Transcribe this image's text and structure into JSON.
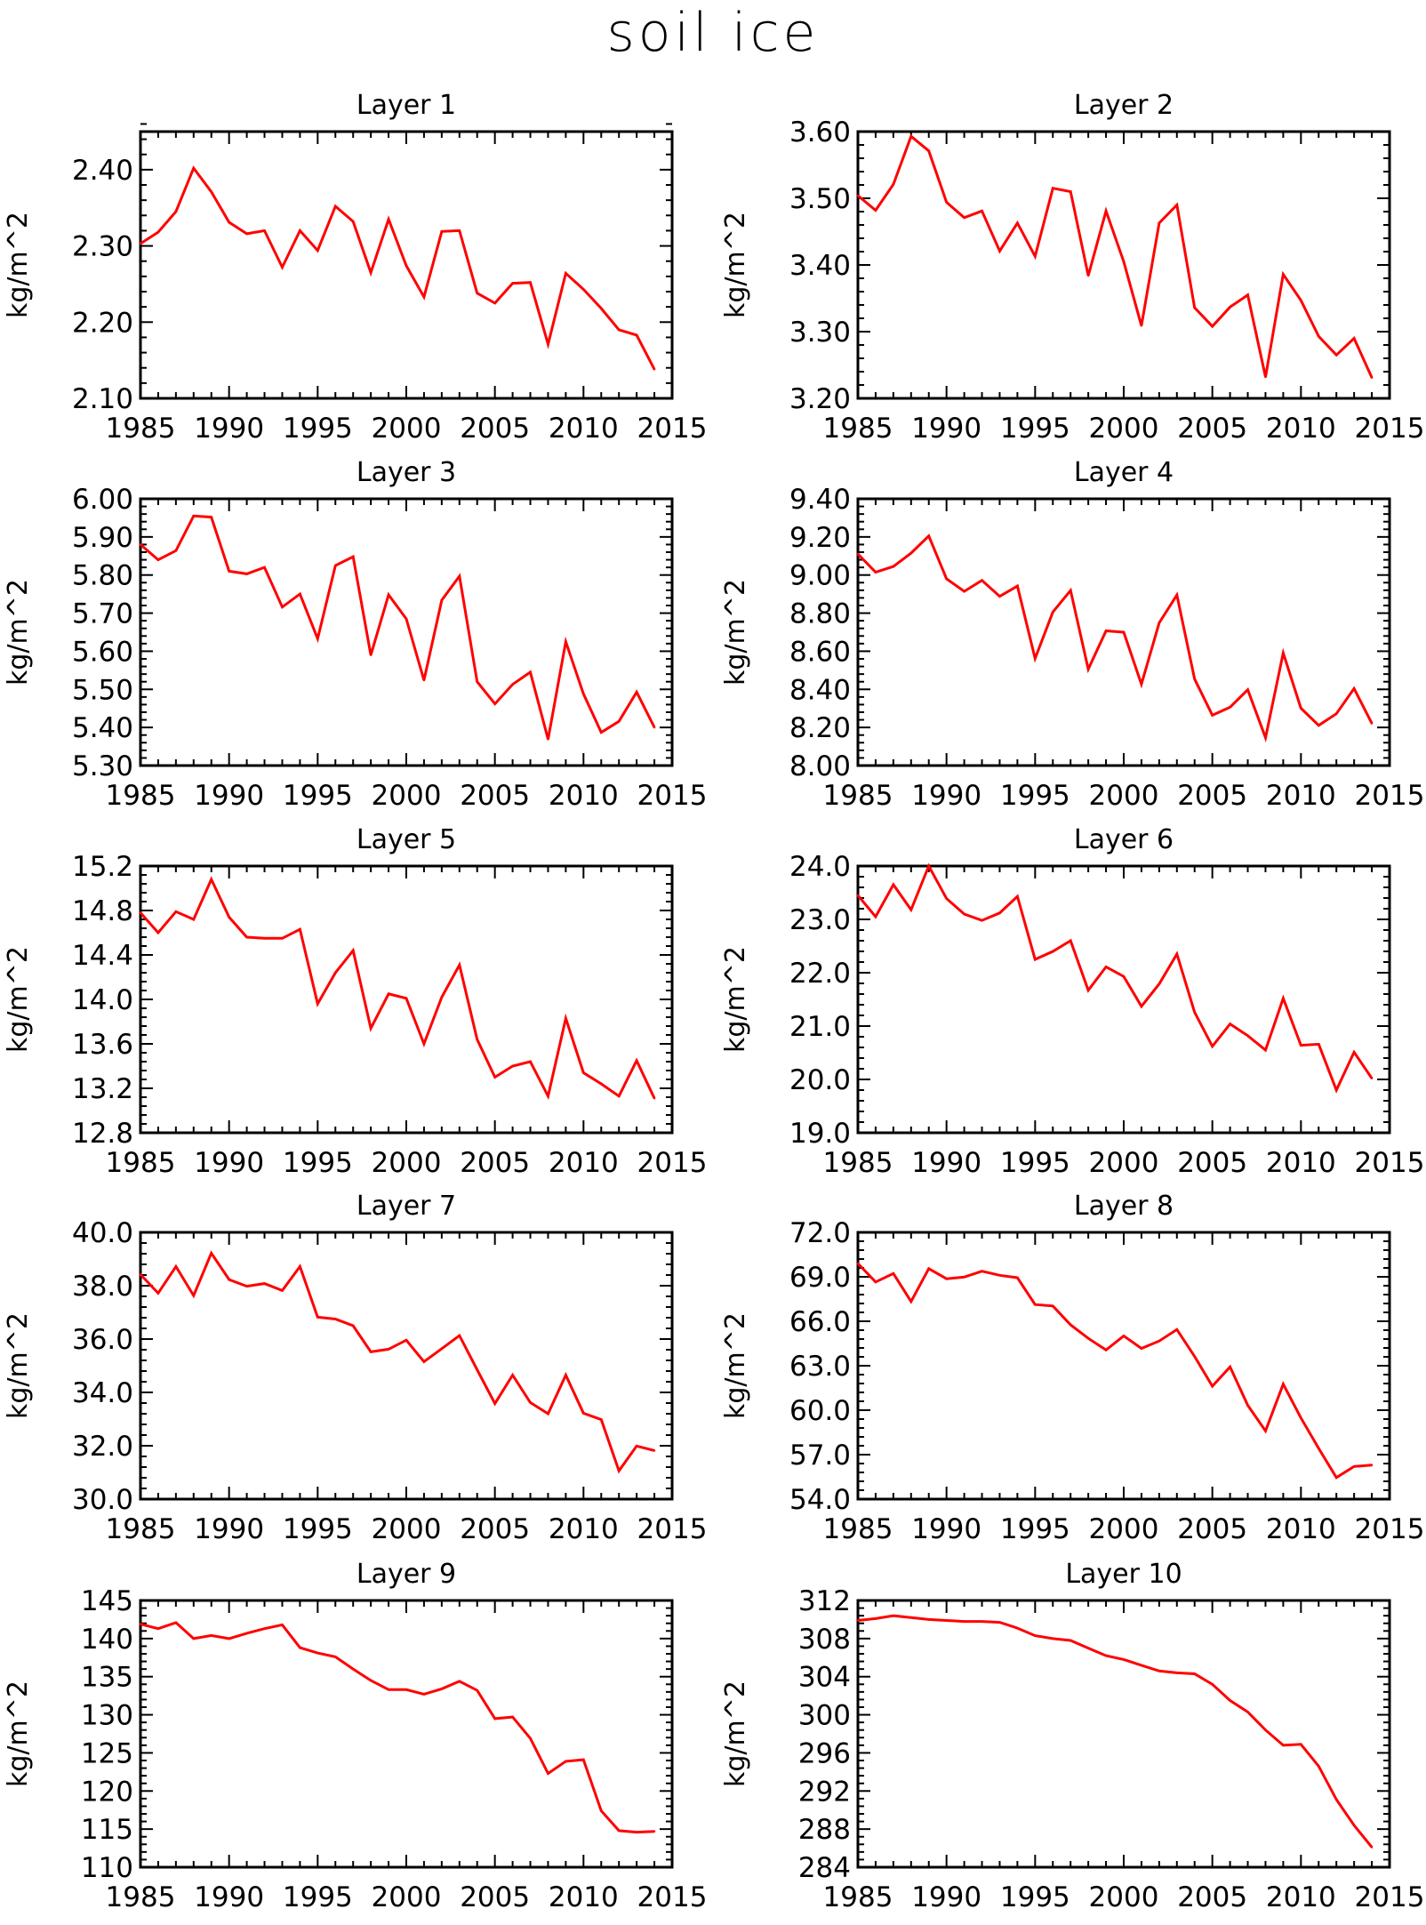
{
  "title": "soil ice",
  "chart_data": [
    {
      "type": "line",
      "title": "Layer 1",
      "ylabel": "kg/m^2",
      "xlim": [
        1985,
        2015
      ],
      "xticks": [
        1985,
        1990,
        1995,
        2000,
        2005,
        2010,
        2015
      ],
      "ylim": [
        2.1,
        2.45
      ],
      "yticks": [
        "2.10",
        "2.20",
        "2.30",
        "2.40"
      ],
      "ymajor_step": 0.1,
      "line_color": "#ff0000",
      "grid": false,
      "x": [
        1985,
        1986,
        1987,
        1988,
        1989,
        1990,
        1991,
        1992,
        1993,
        1994,
        1995,
        1996,
        1997,
        1998,
        1999,
        2000,
        2001,
        2002,
        2003,
        2004,
        2005,
        2006,
        2007,
        2008,
        2009,
        2010,
        2011,
        2012,
        2013,
        2014
      ],
      "values": [
        2.303,
        2.318,
        2.345,
        2.402,
        2.371,
        2.331,
        2.316,
        2.32,
        2.272,
        2.32,
        2.294,
        2.352,
        2.332,
        2.265,
        2.335,
        2.274,
        2.233,
        2.319,
        2.32,
        2.238,
        2.225,
        2.251,
        2.252,
        2.171,
        2.264,
        2.243,
        2.218,
        2.19,
        2.183,
        2.138
      ]
    },
    {
      "type": "line",
      "title": "Layer 2",
      "ylabel": "kg/m^2",
      "xlim": [
        1985,
        2015
      ],
      "xticks": [
        1985,
        1990,
        1995,
        2000,
        2005,
        2010,
        2015
      ],
      "ylim": [
        3.2,
        3.6
      ],
      "yticks": [
        "3.20",
        "3.30",
        "3.40",
        "3.50",
        "3.60"
      ],
      "ymajor_step": 0.1,
      "line_color": "#ff0000",
      "grid": false,
      "x": [
        1985,
        1986,
        1987,
        1988,
        1989,
        1990,
        1991,
        1992,
        1993,
        1994,
        1995,
        1996,
        1997,
        1998,
        1999,
        2000,
        2001,
        2002,
        2003,
        2004,
        2005,
        2006,
        2007,
        2008,
        2009,
        2010,
        2011,
        2012,
        2013,
        2014
      ],
      "values": [
        3.504,
        3.482,
        3.521,
        3.593,
        3.571,
        3.494,
        3.471,
        3.481,
        3.421,
        3.463,
        3.413,
        3.515,
        3.51,
        3.384,
        3.481,
        3.405,
        3.309,
        3.463,
        3.49,
        3.336,
        3.308,
        3.337,
        3.355,
        3.232,
        3.386,
        3.347,
        3.293,
        3.265,
        3.29,
        3.231
      ]
    },
    {
      "type": "line",
      "title": "Layer 3",
      "ylabel": "kg/m^2",
      "xlim": [
        1985,
        2015
      ],
      "xticks": [
        1985,
        1990,
        1995,
        2000,
        2005,
        2010,
        2015
      ],
      "ylim": [
        5.3,
        6.0
      ],
      "yticks": [
        "5.30",
        "5.40",
        "5.50",
        "5.60",
        "5.70",
        "5.80",
        "5.90",
        "6.00"
      ],
      "ymajor_step": 0.1,
      "line_color": "#ff0000",
      "grid": false,
      "x": [
        1985,
        1986,
        1987,
        1988,
        1989,
        1990,
        1991,
        1992,
        1993,
        1994,
        1995,
        1996,
        1997,
        1998,
        1999,
        2000,
        2001,
        2002,
        2003,
        2004,
        2005,
        2006,
        2007,
        2008,
        2009,
        2010,
        2011,
        2012,
        2013,
        2014
      ],
      "values": [
        5.88,
        5.84,
        5.864,
        5.955,
        5.952,
        5.81,
        5.803,
        5.82,
        5.716,
        5.75,
        5.633,
        5.825,
        5.848,
        5.59,
        5.748,
        5.685,
        5.524,
        5.734,
        5.797,
        5.52,
        5.462,
        5.513,
        5.545,
        5.369,
        5.625,
        5.488,
        5.387,
        5.416,
        5.493,
        5.4
      ]
    },
    {
      "type": "line",
      "title": "Layer 4",
      "ylabel": "kg/m^2",
      "xlim": [
        1985,
        2015
      ],
      "xticks": [
        1985,
        1990,
        1995,
        2000,
        2005,
        2010,
        2015
      ],
      "ylim": [
        8.0,
        9.4
      ],
      "yticks": [
        "8.00",
        "8.20",
        "8.40",
        "8.60",
        "8.80",
        "9.00",
        "9.20",
        "9.40"
      ],
      "ymajor_step": 0.2,
      "line_color": "#ff0000",
      "grid": false,
      "x": [
        1985,
        1986,
        1987,
        1988,
        1989,
        1990,
        1991,
        1992,
        1993,
        1994,
        1995,
        1996,
        1997,
        1998,
        1999,
        2000,
        2001,
        2002,
        2003,
        2004,
        2005,
        2006,
        2007,
        2008,
        2009,
        2010,
        2011,
        2012,
        2013,
        2014
      ],
      "values": [
        9.11,
        9.015,
        9.045,
        9.115,
        9.205,
        8.98,
        8.914,
        8.972,
        8.888,
        8.942,
        8.562,
        8.806,
        8.919,
        8.506,
        8.707,
        8.7,
        8.427,
        8.749,
        8.895,
        8.454,
        8.264,
        8.306,
        8.398,
        8.146,
        8.591,
        8.301,
        8.211,
        8.272,
        8.404,
        8.221
      ]
    },
    {
      "type": "line",
      "title": "Layer 5",
      "ylabel": "kg/m^2",
      "xlim": [
        1985,
        2015
      ],
      "xticks": [
        1985,
        1990,
        1995,
        2000,
        2005,
        2010,
        2015
      ],
      "ylim": [
        12.8,
        15.2
      ],
      "yticks": [
        "12.8",
        "13.2",
        "13.6",
        "14.0",
        "14.4",
        "14.8",
        "15.2"
      ],
      "ymajor_step": 0.4,
      "line_color": "#ff0000",
      "grid": false,
      "x": [
        1985,
        1986,
        1987,
        1988,
        1989,
        1990,
        1991,
        1992,
        1993,
        1994,
        1995,
        1996,
        1997,
        1998,
        1999,
        2000,
        2001,
        2002,
        2003,
        2004,
        2005,
        2006,
        2007,
        2008,
        2009,
        2010,
        2011,
        2012,
        2013,
        2014
      ],
      "values": [
        14.78,
        14.6,
        14.79,
        14.72,
        15.08,
        14.74,
        14.56,
        14.55,
        14.55,
        14.63,
        13.96,
        14.24,
        14.44,
        13.74,
        14.05,
        14.01,
        13.6,
        14.02,
        14.31,
        13.64,
        13.3,
        13.4,
        13.44,
        13.13,
        13.83,
        13.34,
        13.24,
        13.13,
        13.45,
        13.11
      ]
    },
    {
      "type": "line",
      "title": "Layer 6",
      "ylabel": "kg/m^2",
      "xlim": [
        1985,
        2015
      ],
      "xticks": [
        1985,
        1990,
        1995,
        2000,
        2005,
        2010,
        2015
      ],
      "ylim": [
        19.0,
        24.0
      ],
      "yticks": [
        "19.0",
        "20.0",
        "21.0",
        "22.0",
        "23.0",
        "24.0"
      ],
      "ymajor_step": 1.0,
      "line_color": "#ff0000",
      "grid": false,
      "x": [
        1985,
        1986,
        1987,
        1988,
        1989,
        1990,
        1991,
        1992,
        1993,
        1994,
        1995,
        1996,
        1997,
        1998,
        1999,
        2000,
        2001,
        2002,
        2003,
        2004,
        2005,
        2006,
        2007,
        2008,
        2009,
        2010,
        2011,
        2012,
        2013,
        2014
      ],
      "values": [
        23.45,
        23.05,
        23.65,
        23.18,
        24.0,
        23.39,
        23.1,
        22.98,
        23.12,
        23.43,
        22.25,
        22.4,
        22.6,
        21.67,
        22.11,
        21.93,
        21.37,
        21.79,
        22.35,
        21.26,
        20.62,
        21.04,
        20.82,
        20.55,
        21.52,
        20.64,
        20.66,
        19.8,
        20.51,
        20.02
      ]
    },
    {
      "type": "line",
      "title": "Layer 7",
      "ylabel": "kg/m^2",
      "xlim": [
        1985,
        2015
      ],
      "xticks": [
        1985,
        1990,
        1995,
        2000,
        2005,
        2010,
        2015
      ],
      "ylim": [
        30.0,
        40.0
      ],
      "yticks": [
        "30.0",
        "32.0",
        "34.0",
        "36.0",
        "38.0",
        "40.0"
      ],
      "ymajor_step": 2.0,
      "line_color": "#ff0000",
      "grid": false,
      "x": [
        1985,
        1986,
        1987,
        1988,
        1989,
        1990,
        1991,
        1992,
        1993,
        1994,
        1995,
        1996,
        1997,
        1998,
        1999,
        2000,
        2001,
        2002,
        2003,
        2004,
        2005,
        2006,
        2007,
        2008,
        2009,
        2010,
        2011,
        2012,
        2013,
        2014
      ],
      "values": [
        38.42,
        37.72,
        38.72,
        37.63,
        39.22,
        38.23,
        37.98,
        38.08,
        37.82,
        38.72,
        36.82,
        36.75,
        36.5,
        35.52,
        35.62,
        35.96,
        35.15,
        35.64,
        36.13,
        34.85,
        33.58,
        34.65,
        33.62,
        33.2,
        34.65,
        33.22,
        32.98,
        31.06,
        31.99,
        31.82
      ]
    },
    {
      "type": "line",
      "title": "Layer 8",
      "ylabel": "kg/m^2",
      "xlim": [
        1985,
        2015
      ],
      "xticks": [
        1985,
        1990,
        1995,
        2000,
        2005,
        2010,
        2015
      ],
      "ylim": [
        54.0,
        72.0
      ],
      "yticks": [
        "54.0",
        "57.0",
        "60.0",
        "63.0",
        "66.0",
        "69.0",
        "72.0"
      ],
      "ymajor_step": 3.0,
      "line_color": "#ff0000",
      "grid": false,
      "x": [
        1985,
        1986,
        1987,
        1988,
        1989,
        1990,
        1991,
        1992,
        1993,
        1994,
        1995,
        1996,
        1997,
        1998,
        1999,
        2000,
        2001,
        2002,
        2003,
        2004,
        2005,
        2006,
        2007,
        2008,
        2009,
        2010,
        2011,
        2012,
        2013,
        2014
      ],
      "values": [
        69.9,
        68.65,
        69.22,
        67.33,
        69.55,
        68.87,
        68.98,
        69.38,
        69.1,
        68.94,
        67.13,
        67.03,
        65.76,
        64.85,
        64.06,
        65.01,
        64.17,
        64.67,
        65.44,
        63.63,
        61.62,
        62.92,
        60.33,
        58.6,
        61.76,
        59.48,
        57.42,
        55.45,
        56.2,
        56.3
      ]
    },
    {
      "type": "line",
      "title": "Layer 9",
      "ylabel": "kg/m^2",
      "xlim": [
        1985,
        2015
      ],
      "xticks": [
        1985,
        1990,
        1995,
        2000,
        2005,
        2010,
        2015
      ],
      "ylim": [
        110,
        145
      ],
      "yticks": [
        "110",
        "115",
        "120",
        "125",
        "130",
        "135",
        "140",
        "145"
      ],
      "ymajor_step": 5,
      "line_color": "#ff0000",
      "grid": false,
      "x": [
        1985,
        1986,
        1987,
        1988,
        1989,
        1990,
        1991,
        1992,
        1993,
        1994,
        1995,
        1996,
        1997,
        1998,
        1999,
        2000,
        2001,
        2002,
        2003,
        2004,
        2005,
        2006,
        2007,
        2008,
        2009,
        2010,
        2011,
        2012,
        2013,
        2014
      ],
      "values": [
        141.9,
        141.3,
        142.1,
        140.0,
        140.4,
        140.0,
        140.7,
        141.3,
        141.8,
        138.8,
        138.1,
        137.6,
        136.0,
        134.5,
        133.3,
        133.3,
        132.7,
        133.4,
        134.4,
        133.2,
        129.5,
        129.7,
        126.9,
        122.3,
        123.9,
        124.1,
        117.4,
        114.8,
        114.6,
        114.7
      ]
    },
    {
      "type": "line",
      "title": "Layer 10",
      "ylabel": "kg/m^2",
      "xlim": [
        1985,
        2015
      ],
      "xticks": [
        1985,
        1990,
        1995,
        2000,
        2005,
        2010,
        2015
      ],
      "ylim": [
        284,
        312
      ],
      "yticks": [
        "284",
        "288",
        "292",
        "296",
        "300",
        "304",
        "308",
        "312"
      ],
      "ymajor_step": 4,
      "line_color": "#ff0000",
      "grid": false,
      "x": [
        1985,
        1986,
        1987,
        1988,
        1989,
        1990,
        1991,
        1992,
        1993,
        1994,
        1995,
        1996,
        1997,
        1998,
        1999,
        2000,
        2001,
        2002,
        2003,
        2004,
        2005,
        2006,
        2007,
        2008,
        2009,
        2010,
        2011,
        2012,
        2013,
        2014
      ],
      "values": [
        309.9,
        310.1,
        310.4,
        310.2,
        310.0,
        309.9,
        309.8,
        309.8,
        309.7,
        309.1,
        308.3,
        308.0,
        307.8,
        307.0,
        306.2,
        305.8,
        305.2,
        304.6,
        304.4,
        304.3,
        303.2,
        301.5,
        300.3,
        298.4,
        296.8,
        296.9,
        294.6,
        291.1,
        288.4,
        286.1
      ]
    }
  ]
}
